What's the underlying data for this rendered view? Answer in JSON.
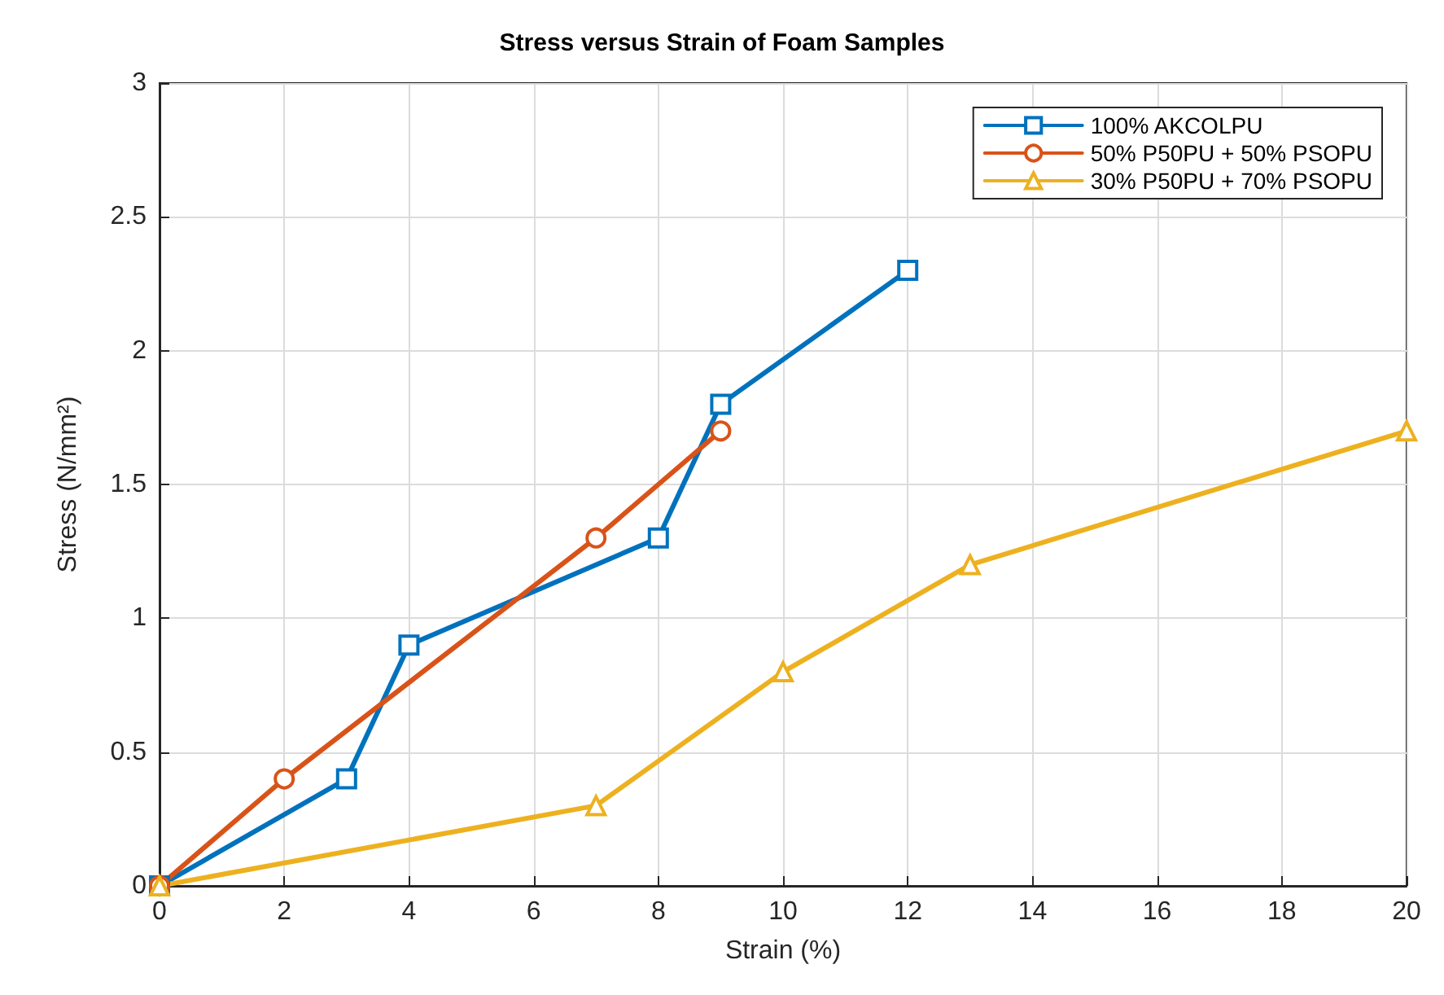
{
  "chart_data": {
    "type": "line",
    "title": "Stress versus Strain of Foam Samples",
    "xlabel": "Strain (%)",
    "ylabel": "Stress (N/mm²)",
    "series": [
      {
        "name": "100% AKCOLPU",
        "color": "#0072bd",
        "marker": "square",
        "x": [
          0,
          3,
          4,
          8,
          9,
          12
        ],
        "values": [
          0,
          0.4,
          0.9,
          1.3,
          1.8,
          2.3
        ]
      },
      {
        "name": "50% P50PU + 50% PSOPU",
        "color": "#d95319",
        "marker": "circle",
        "x": [
          0,
          2,
          7,
          9
        ],
        "values": [
          0,
          0.4,
          1.3,
          1.7
        ]
      },
      {
        "name": "30% P50PU + 70% PSOPU",
        "color": "#edb120",
        "marker": "triangle",
        "x": [
          0,
          7,
          10,
          13,
          20
        ],
        "values": [
          0,
          0.3,
          0.8,
          1.2,
          1.7
        ]
      }
    ],
    "xlim": [
      0,
      20
    ],
    "xticks": [
      0,
      2,
      4,
      6,
      8,
      10,
      12,
      14,
      16,
      18,
      20
    ],
    "ylim": [
      0,
      3
    ],
    "yticks": [
      0,
      0.5,
      1,
      1.5,
      2,
      2.5,
      3
    ],
    "grid": true,
    "legend": "top right",
    "line_style": "solid"
  }
}
